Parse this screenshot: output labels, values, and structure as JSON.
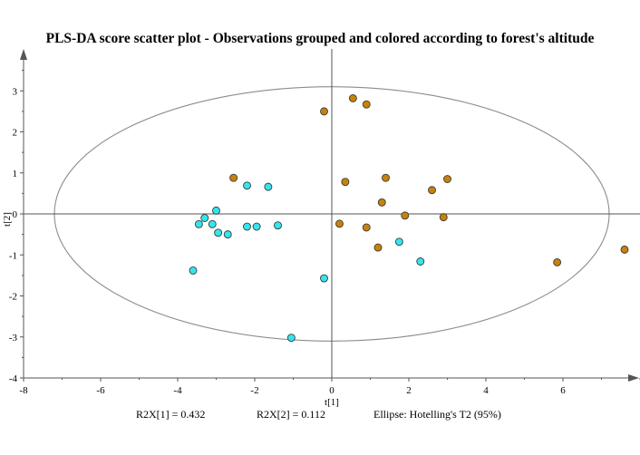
{
  "chart_data": {
    "type": "scatter",
    "title": "PLS-DA score scatter plot - Observations grouped and colored according to forest's altitude",
    "xlabel": "t[1]",
    "ylabel": "t[2]",
    "xlim": [
      -8,
      8
    ],
    "ylim": [
      -4,
      4
    ],
    "xticks": [
      -8,
      -6,
      -4,
      -2,
      0,
      2,
      4,
      6
    ],
    "yticks": [
      -4,
      -3,
      -2,
      -1,
      0,
      1,
      2,
      3
    ],
    "ellipse": {
      "label": "Ellipse: Hotelling's T2 (95%)",
      "rx": 7.2,
      "ry": 3.1
    },
    "footer": [
      "R2X[1] = 0.432",
      "R2X[2] = 0.112",
      "Ellipse: Hotelling's T2 (95%)"
    ],
    "colors": {
      "group_a": "#c98208",
      "group_b": "#33e6ee",
      "ellipse": "#8c8c8c",
      "axis": "#555555"
    },
    "series": [
      {
        "color": "#c98208",
        "points": [
          [
            0.55,
            2.82
          ],
          [
            0.9,
            2.67
          ],
          [
            -0.2,
            2.5
          ],
          [
            -2.55,
            0.88
          ],
          [
            0.35,
            0.78
          ],
          [
            1.4,
            0.88
          ],
          [
            3.0,
            0.85
          ],
          [
            2.6,
            0.58
          ],
          [
            1.3,
            0.28
          ],
          [
            1.9,
            -0.04
          ],
          [
            2.9,
            -0.08
          ],
          [
            0.2,
            -0.24
          ],
          [
            0.9,
            -0.33
          ],
          [
            1.2,
            -0.82
          ],
          [
            5.85,
            -1.18
          ],
          [
            7.6,
            -0.87
          ]
        ]
      },
      {
        "color": "#33e6ee",
        "points": [
          [
            -2.2,
            0.69
          ],
          [
            -1.65,
            0.66
          ],
          [
            -3.0,
            0.08
          ],
          [
            -3.3,
            -0.1
          ],
          [
            -3.45,
            -0.25
          ],
          [
            -3.1,
            -0.25
          ],
          [
            -2.2,
            -0.31
          ],
          [
            -1.95,
            -0.31
          ],
          [
            -1.4,
            -0.28
          ],
          [
            -2.95,
            -0.46
          ],
          [
            -2.7,
            -0.5
          ],
          [
            1.75,
            -0.68
          ],
          [
            2.3,
            -1.16
          ],
          [
            -3.6,
            -1.38
          ],
          [
            -0.2,
            -1.57
          ],
          [
            -1.05,
            -3.02
          ]
        ]
      }
    ]
  }
}
